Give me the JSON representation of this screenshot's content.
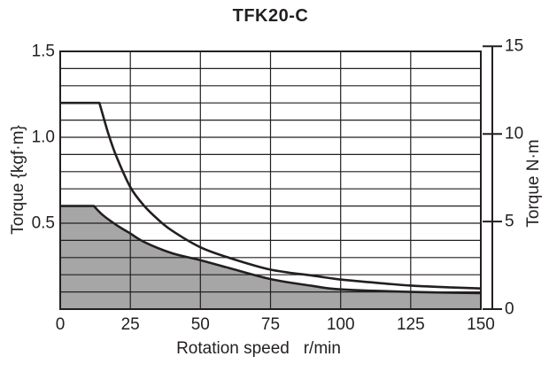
{
  "colors": {
    "line": "#231f20",
    "grid": "#231f20",
    "fill_gray": "#a6a6a6",
    "background": "#ffffff",
    "text": "#231f20"
  },
  "chart_data": {
    "type": "line",
    "title": "TFK20-C",
    "grid": true,
    "legend": "none",
    "x_axis": {
      "label": "Rotation speed   r/min",
      "range": [
        0,
        150
      ],
      "ticks": [
        0,
        25,
        50,
        75,
        100,
        125,
        150
      ],
      "gridline_step": 25
    },
    "y_axis_left": {
      "label": "Torque {kgf·m}",
      "range": [
        0,
        1.5
      ],
      "ticks": [
        "0.5",
        "1.0",
        "1.5"
      ],
      "gridline_step": 0.1
    },
    "y_axis_right": {
      "label": "Torque N·m",
      "range": [
        0,
        15
      ],
      "ticks": [
        0,
        5,
        10,
        15
      ],
      "kgfm_to_nm": 9.80665,
      "note": "separate axis line drawn right of plot"
    },
    "series": [
      {
        "name": "upper-torque-curve",
        "fill": false,
        "points": [
          [
            0,
            1.2
          ],
          [
            14,
            1.2
          ],
          [
            17,
            1.03
          ],
          [
            20,
            0.89
          ],
          [
            25,
            0.71
          ],
          [
            30,
            0.6
          ],
          [
            35,
            0.52
          ],
          [
            40,
            0.455
          ],
          [
            50,
            0.36
          ],
          [
            60,
            0.3
          ],
          [
            75,
            0.23
          ],
          [
            90,
            0.195
          ],
          [
            100,
            0.172
          ],
          [
            115,
            0.15
          ],
          [
            125,
            0.137
          ],
          [
            140,
            0.126
          ],
          [
            150,
            0.12
          ]
        ]
      },
      {
        "name": "lower-torque-curve-filled",
        "fill": true,
        "points": [
          [
            0,
            0.6
          ],
          [
            12,
            0.6
          ],
          [
            15,
            0.55
          ],
          [
            20,
            0.49
          ],
          [
            25,
            0.44
          ],
          [
            30,
            0.39
          ],
          [
            40,
            0.325
          ],
          [
            50,
            0.285
          ],
          [
            60,
            0.24
          ],
          [
            75,
            0.175
          ],
          [
            90,
            0.135
          ],
          [
            100,
            0.115
          ],
          [
            125,
            0.1
          ],
          [
            150,
            0.093
          ]
        ]
      }
    ]
  }
}
